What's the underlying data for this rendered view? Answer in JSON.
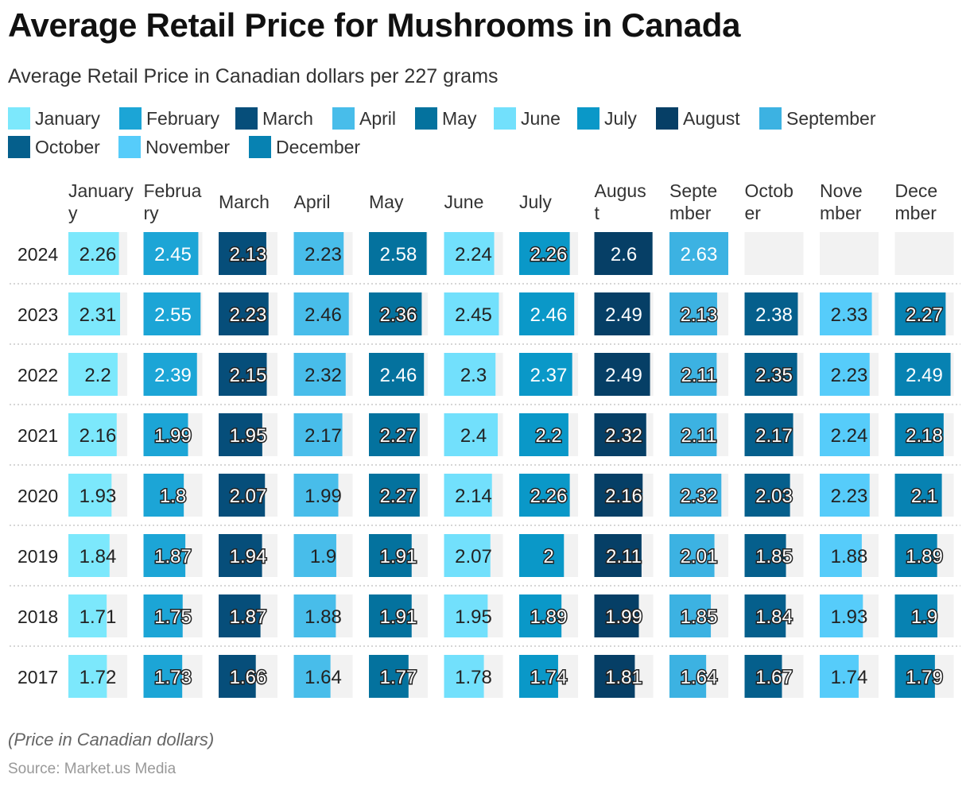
{
  "title": "Average Retail Price for Mushrooms in Canada",
  "subtitle": "Average Retail Price in Canadian dollars per 227 grams",
  "footnote": "(Price in Canadian dollars)",
  "source": "Source: Market.us Media",
  "colors": {
    "January": "#7ce8fc",
    "February": "#1ca5d6",
    "March": "#064e7a",
    "April": "#48bdea",
    "May": "#04729e",
    "June": "#72e0fc",
    "July": "#0a98c8",
    "August": "#063f66",
    "September": "#3cb2e2",
    "October": "#055f8c",
    "November": "#56ccfa",
    "December": "#0782b2",
    "track": "#f2f2f2",
    "divider": "#c8c8c8"
  },
  "chart_data": {
    "type": "table",
    "title": "Average Retail Price for Mushrooms in Canada",
    "subtitle": "Average Retail Price in Canadian dollars per 227 grams",
    "months": [
      "January",
      "February",
      "March",
      "April",
      "May",
      "June",
      "July",
      "August",
      "September",
      "October",
      "November",
      "December"
    ],
    "month_headers": [
      [
        "January",
        "y"
      ],
      [
        "Februa",
        "ry"
      ],
      [
        "March"
      ],
      [
        "April"
      ],
      [
        "May"
      ],
      [
        "June"
      ],
      [
        "July"
      ],
      [
        "Augus",
        "t"
      ],
      [
        "Septe",
        "mber"
      ],
      [
        "Octob",
        "er"
      ],
      [
        "Nove",
        "mber"
      ],
      [
        "Dece",
        "mber"
      ]
    ],
    "value_range": [
      0,
      2.63
    ],
    "rows": [
      {
        "year": "2024",
        "values": [
          2.26,
          2.45,
          2.13,
          2.23,
          2.58,
          2.24,
          2.26,
          2.6,
          2.63,
          null,
          null,
          null
        ],
        "labels": [
          "2.26",
          "2.45",
          "2.13",
          "2.23",
          "2.58",
          "2.24",
          "2.26",
          "2.6",
          "2.63",
          "",
          "",
          ""
        ]
      },
      {
        "year": "2023",
        "values": [
          2.31,
          2.55,
          2.23,
          2.46,
          2.36,
          2.45,
          2.46,
          2.49,
          2.13,
          2.38,
          2.33,
          2.27
        ],
        "labels": [
          "2.31",
          "2.55",
          "2.23",
          "2.46",
          "2.36",
          "2.45",
          "2.46",
          "2.49",
          "2.13",
          "2.38",
          "2.33",
          "2.27"
        ]
      },
      {
        "year": "2022",
        "values": [
          2.2,
          2.39,
          2.15,
          2.32,
          2.46,
          2.3,
          2.37,
          2.49,
          2.11,
          2.35,
          2.23,
          2.49
        ],
        "labels": [
          "2.2",
          "2.39",
          "2.15",
          "2.32",
          "2.46",
          "2.3",
          "2.37",
          "2.49",
          "2.11",
          "2.35",
          "2.23",
          "2.49"
        ]
      },
      {
        "year": "2021",
        "values": [
          2.16,
          1.99,
          1.95,
          2.17,
          2.27,
          2.4,
          2.2,
          2.32,
          2.11,
          2.17,
          2.24,
          2.18
        ],
        "labels": [
          "2.16",
          "1.99",
          "1.95",
          "2.17",
          "2.27",
          "2.4",
          "2.2",
          "2.32",
          "2.11",
          "2.17",
          "2.24",
          "2.18"
        ]
      },
      {
        "year": "2020",
        "values": [
          1.93,
          1.8,
          2.07,
          1.99,
          2.27,
          2.14,
          2.26,
          2.16,
          2.32,
          2.03,
          2.23,
          2.1
        ],
        "labels": [
          "1.93",
          "1.8",
          "2.07",
          "1.99",
          "2.27",
          "2.14",
          "2.26",
          "2.16",
          "2.32",
          "2.03",
          "2.23",
          "2.1"
        ]
      },
      {
        "year": "2019",
        "values": [
          1.84,
          1.87,
          1.94,
          1.9,
          1.91,
          2.07,
          2.0,
          2.11,
          2.01,
          1.85,
          1.88,
          1.89
        ],
        "labels": [
          "1.84",
          "1.87",
          "1.94",
          "1.9",
          "1.91",
          "2.07",
          "2",
          "2.11",
          "2.01",
          "1.85",
          "1.88",
          "1.89"
        ]
      },
      {
        "year": "2018",
        "values": [
          1.71,
          1.75,
          1.87,
          1.88,
          1.91,
          1.95,
          1.89,
          1.99,
          1.85,
          1.84,
          1.93,
          1.9
        ],
        "labels": [
          "1.71",
          "1.75",
          "1.87",
          "1.88",
          "1.91",
          "1.95",
          "1.89",
          "1.99",
          "1.85",
          "1.84",
          "1.93",
          "1.9"
        ]
      },
      {
        "year": "2017",
        "values": [
          1.72,
          1.73,
          1.66,
          1.64,
          1.77,
          1.78,
          1.74,
          1.81,
          1.64,
          1.67,
          1.74,
          1.79
        ],
        "labels": [
          "1.72",
          "1.73",
          "1.66",
          "1.64",
          "1.77",
          "1.78",
          "1.74",
          "1.81",
          "1.64",
          "1.67",
          "1.74",
          "1.79"
        ]
      }
    ]
  }
}
